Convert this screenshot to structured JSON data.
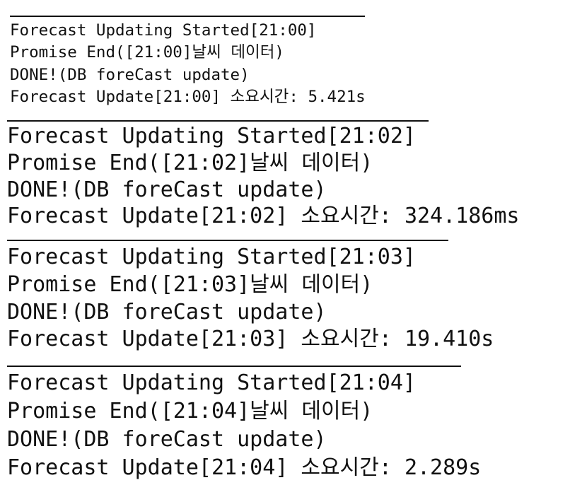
{
  "log_blocks": [
    {
      "started": "Forecast Updating Started[21:00]",
      "promise": "Promise End([21:00]날씨 데이터)",
      "done": "DONE!(DB foreCast update)",
      "duration": "Forecast Update[21:00] 소요시간: 5.421s"
    },
    {
      "started": "Forecast Updating Started[21:02]",
      "promise": "Promise End([21:02]날씨 데이터)",
      "done": "DONE!(DB foreCast update)",
      "duration": "Forecast Update[21:02] 소요시간: 324.186ms"
    },
    {
      "started": "Forecast Updating Started[21:03]",
      "promise": "Promise End([21:03]날씨 데이터)",
      "done": "DONE!(DB foreCast update)",
      "duration": "Forecast Update[21:03] 소요시간: 19.410s"
    },
    {
      "started": "Forecast Updating Started[21:04]",
      "promise": "Promise End([21:04]날씨 데이터)",
      "done": "DONE!(DB foreCast update)",
      "duration": "Forecast Update[21:04] 소요시간: 2.289s"
    }
  ]
}
